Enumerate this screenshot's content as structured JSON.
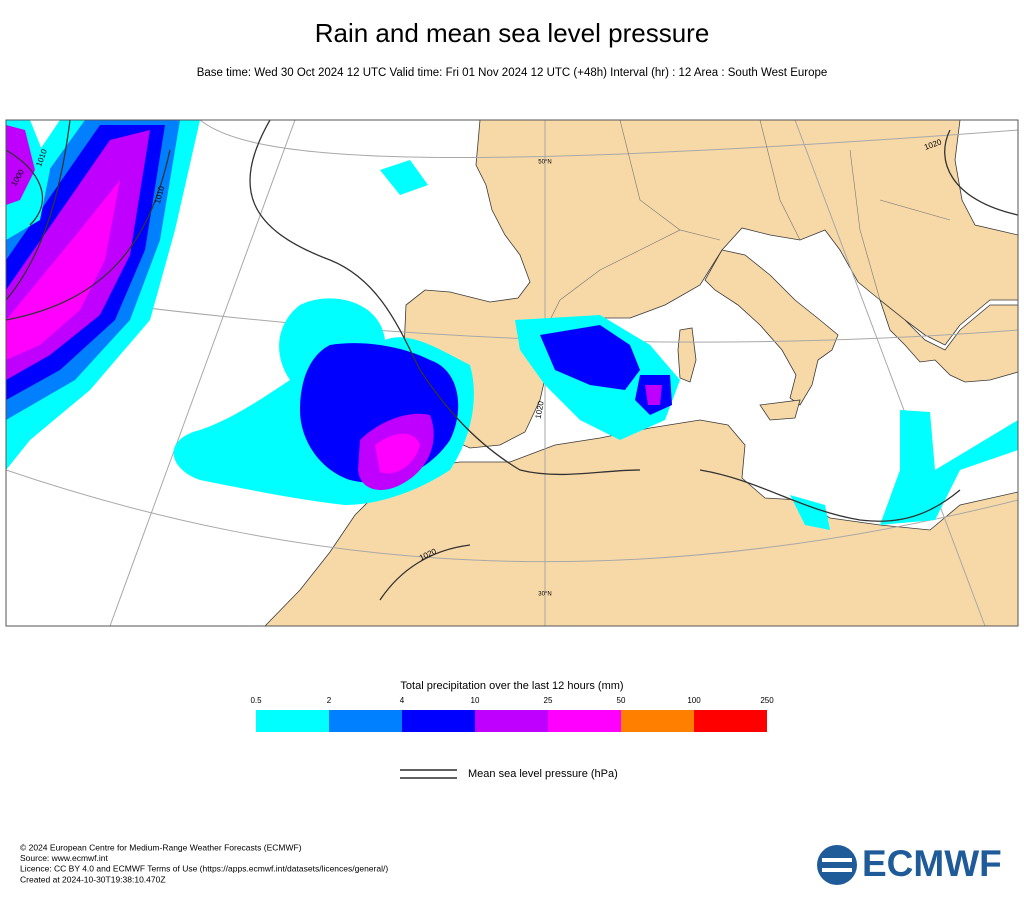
{
  "header": {
    "title": "Rain and mean sea level pressure",
    "subtitle": "Base time: Wed 30 Oct 2024 12 UTC Valid time: Fri 01 Nov 2024 12 UTC (+48h) Interval (hr) : 12 Area : South West Europe"
  },
  "map": {
    "labels": [
      "1010",
      "1000",
      "1010",
      "1020",
      "1020",
      "1020",
      "50°N",
      "30°N"
    ]
  },
  "legend": {
    "title": "Total precipitation over the last 12 hours (mm)",
    "levels": [
      0.5,
      2,
      4,
      10,
      25,
      50,
      100,
      250
    ],
    "colors": [
      "#00ffff",
      "#0080ff",
      "#0000ff",
      "#c000ff",
      "#ff00ff",
      "#ff8000",
      "#ff0000"
    ],
    "pressure_label": "Mean sea level pressure (hPa)"
  },
  "footer": {
    "lines": [
      "© 2024 European Centre for Medium-Range Weather Forecasts (ECMWF)",
      "Source: www.ecmwf.int",
      "Licence: CC BY 4.0 and ECMWF Terms of Use (https://apps.ecmwf.int/datasets/licences/general/)",
      "Created at 2024-10-30T19:38:10.470Z"
    ],
    "logo": "ECMWF"
  }
}
